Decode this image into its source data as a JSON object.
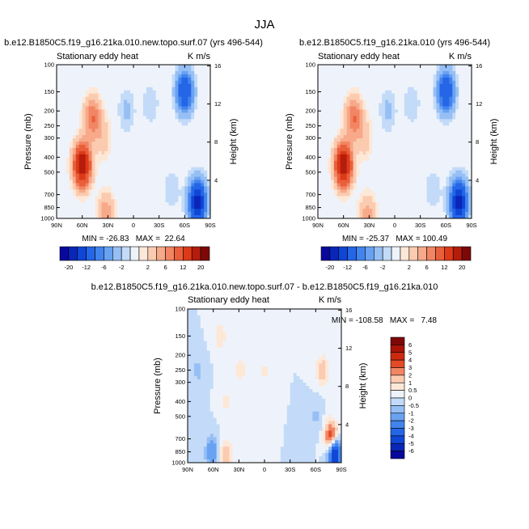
{
  "chart_data": {
    "title": "JJA",
    "panels": [
      {
        "type": "contour",
        "title": "b.e12.B1850C5.f19_g16.21ka.010.new.topo.surf.07 (yrs 496-544)",
        "left_label": "Stationary eddy heat",
        "right_label": "K m/s",
        "ylabel": "Pressure (mb)",
        "y2label": "Height (km)",
        "x_ticks": [
          "90N",
          "60N",
          "30N",
          "0",
          "30S",
          "60S",
          "90S"
        ],
        "pressure_ticks": [
          "100",
          "150",
          "200",
          "250",
          "300",
          "400",
          "500",
          "700",
          "850",
          "1000"
        ],
        "height_ticks": [
          "4",
          "8",
          "12",
          "16"
        ],
        "stats_text": "MIN = -26.83   MAX =  22.64",
        "min": -26.83,
        "max": 22.64,
        "features": [
          {
            "lat": 60,
            "p": 450,
            "value": 20
          },
          {
            "lat": 48,
            "p": 220,
            "value": 8
          },
          {
            "lat": 35,
            "p": 300,
            "value": 3
          },
          {
            "lat": 32,
            "p": 950,
            "value": 6
          },
          {
            "lat": 8,
            "p": 200,
            "value": -2.5
          },
          {
            "lat": -20,
            "p": 180,
            "value": -2
          },
          {
            "lat": -60,
            "p": 150,
            "value": -12
          },
          {
            "lat": -75,
            "p": 780,
            "value": -18
          },
          {
            "lat": -45,
            "p": 650,
            "value": -2
          }
        ]
      },
      {
        "type": "contour",
        "title": "b.e12.B1850C5.f19_g16.21ka.010 (yrs 496-544)",
        "left_label": "Stationary eddy heat",
        "right_label": "K m/s",
        "ylabel": "Pressure (mb)",
        "y2label": "Height (km)",
        "x_ticks": [
          "90N",
          "60N",
          "30N",
          "0",
          "30S",
          "60S",
          "90S"
        ],
        "pressure_ticks": [
          "100",
          "150",
          "200",
          "250",
          "300",
          "400",
          "500",
          "700",
          "850",
          "1000"
        ],
        "height_ticks": [
          "4",
          "8",
          "12",
          "16"
        ],
        "stats_text": "MIN = -25.37   MAX = 100.49",
        "min": -25.37,
        "max": 100.49,
        "features": [
          {
            "lat": 60,
            "p": 450,
            "value": 20
          },
          {
            "lat": 48,
            "p": 220,
            "value": 8
          },
          {
            "lat": 35,
            "p": 300,
            "value": 3
          },
          {
            "lat": 32,
            "p": 950,
            "value": 5
          },
          {
            "lat": 8,
            "p": 200,
            "value": -2.5
          },
          {
            "lat": -20,
            "p": 180,
            "value": -2
          },
          {
            "lat": -60,
            "p": 150,
            "value": -12
          },
          {
            "lat": -75,
            "p": 780,
            "value": -18
          },
          {
            "lat": -45,
            "p": 650,
            "value": -2
          }
        ]
      },
      {
        "type": "contour",
        "title": "b.e12.B1850C5.f19_g16.21ka.010.new.topo.surf.07 - b.e12.B1850C5.f19_g16.21ka.010",
        "left_label": "Stationary eddy heat",
        "right_label": "K m/s",
        "ylabel": "Pressure (mb)",
        "y2label": "Height (km)",
        "x_ticks": [
          "90N",
          "60N",
          "30N",
          "0",
          "30S",
          "60S",
          "90S"
        ],
        "pressure_ticks": [
          "100",
          "150",
          "200",
          "250",
          "300",
          "400",
          "500",
          "700",
          "850",
          "1000"
        ],
        "height_ticks": [
          "4",
          "8",
          "12",
          "16"
        ],
        "stats_text": "MIN = -108.58   MAX =   7.48",
        "min": -108.58,
        "max": 7.48,
        "features": [
          {
            "lat": 78,
            "p": 250,
            "value": -0.7
          },
          {
            "lat": 52,
            "p": 150,
            "value": 1
          },
          {
            "lat": 45,
            "p": 400,
            "value": 0.7
          },
          {
            "lat": 28,
            "p": 250,
            "value": 0.8
          },
          {
            "lat": 62,
            "p": 850,
            "value": -1.8
          },
          {
            "lat": 45,
            "p": 880,
            "value": 1.5
          },
          {
            "lat": -68,
            "p": 250,
            "value": 1.5
          },
          {
            "lat": -78,
            "p": 680,
            "value": 4
          },
          {
            "lat": -82,
            "p": 880,
            "value": -6
          },
          {
            "lat": -60,
            "p": 500,
            "value": -0.6
          },
          {
            "lat": 0,
            "p": 250,
            "value": 0.6
          }
        ]
      }
    ],
    "colorbar_main": {
      "orientation": "horizontal",
      "levels": [
        -20,
        -16,
        -12,
        -8,
        -6,
        -4,
        -2,
        -1,
        1,
        2,
        4,
        6,
        8,
        12,
        16,
        20
      ],
      "labels": [
        "-20",
        "-12",
        "-6",
        "-2",
        "2",
        "6",
        "12",
        "20"
      ],
      "colors": [
        "#08089c",
        "#0a26b8",
        "#1046d6",
        "#2466e6",
        "#4284ee",
        "#6aa2f2",
        "#96bff5",
        "#c3dbf8",
        "#eef3fb",
        "#fde8d8",
        "#fbcbb0",
        "#f7a98a",
        "#f28563",
        "#ea5f3b",
        "#dc3a18",
        "#b51c0c",
        "#7e0808"
      ]
    },
    "colorbar_diff": {
      "orientation": "vertical",
      "levels": [
        -6,
        -5,
        -4,
        -3,
        -2,
        -1,
        -0.5,
        0,
        0.5,
        1,
        2,
        3,
        4,
        5,
        6
      ],
      "labels": [
        "6",
        "5",
        "4",
        "3",
        "2",
        "1",
        "0.5",
        "0",
        "-0.5",
        "-1",
        "-2",
        "-3",
        "-4",
        "-5",
        "-6"
      ],
      "colors": [
        "#08089c",
        "#0a26b8",
        "#1046d6",
        "#2466e6",
        "#4284ee",
        "#6aa2f2",
        "#96bff5",
        "#c3dbf8",
        "#eef3fb",
        "#fde8d8",
        "#fbcbb0",
        "#f28563",
        "#e34a26",
        "#cc2a10",
        "#a81408",
        "#7e0808"
      ]
    }
  }
}
